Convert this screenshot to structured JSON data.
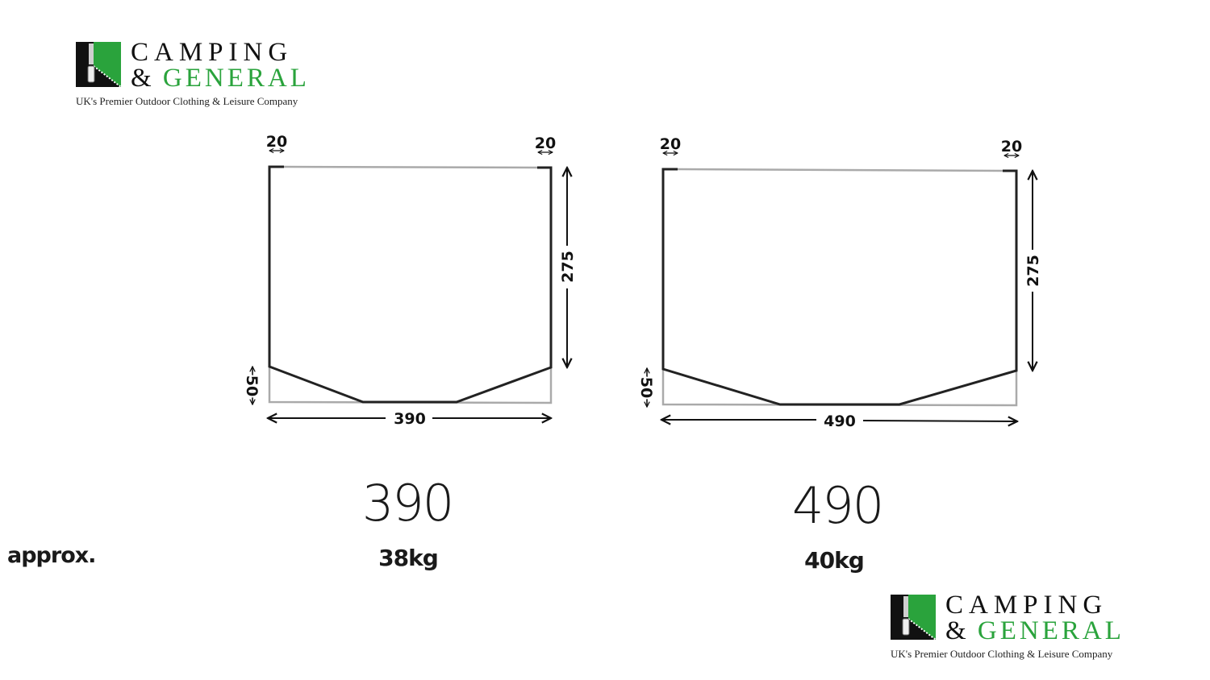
{
  "logo": {
    "line1": "CAMPING",
    "ampersand": "&",
    "line2": "GENERAL",
    "tagline": "UK's Premier Outdoor Clothing & Leisure Company",
    "green": "#2aa33c"
  },
  "models": [
    {
      "width": "390",
      "height": "275",
      "corner_left": "20",
      "corner_right": "20",
      "bottom_cut": "50",
      "size_label": "390",
      "weight": "38kg"
    },
    {
      "width": "490",
      "height": "275",
      "corner_left": "20",
      "corner_right": "20",
      "bottom_cut": "50",
      "size_label": "490",
      "weight": "40kg"
    }
  ],
  "weight_prefix": "approx."
}
